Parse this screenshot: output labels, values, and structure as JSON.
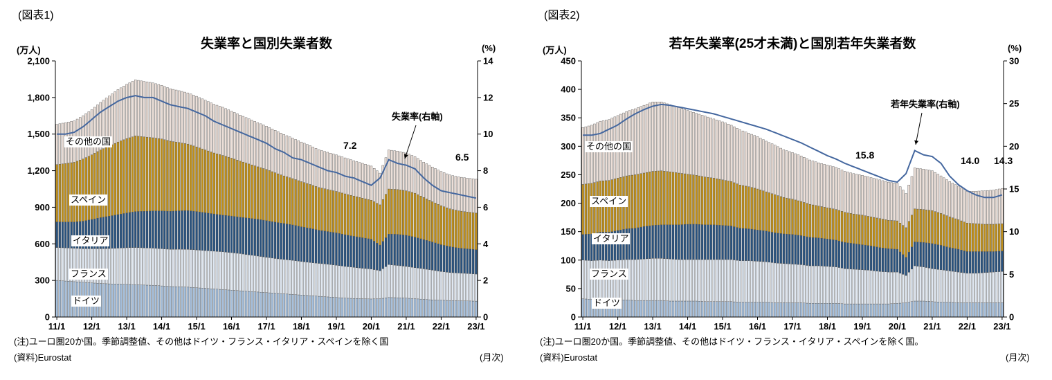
{
  "chart_data": [
    {
      "type": "bar",
      "subtype": "stacked-monthly-bars-with-line-overlay",
      "figure_label": "(図表1)",
      "title": "失業率と国別失業者数",
      "unit_left": "(万人)",
      "unit_right": "(%)",
      "x": {
        "start": "2011/1",
        "end": "2023/1",
        "step_months": 3,
        "note": "quarterly sample of monthly series"
      },
      "x_tick_labels": [
        "11/1",
        "12/1",
        "13/1",
        "14/1",
        "15/1",
        "16/1",
        "17/1",
        "18/1",
        "19/1",
        "20/1",
        "21/1",
        "22/1",
        "23/1"
      ],
      "ylim_left": [
        0,
        2100
      ],
      "yticks_left": [
        0,
        300,
        600,
        900,
        1200,
        1500,
        1800,
        2100
      ],
      "ylim_right": [
        0,
        14
      ],
      "yticks_right": [
        0,
        2,
        4,
        6,
        8,
        10,
        12,
        14
      ],
      "bar_outline_color": "#4d4d4d",
      "legend_position": "labels-in-plot",
      "series": [
        {
          "name": "ドイツ",
          "color": "#a6c0dd",
          "values": [
            300,
            295,
            290,
            285,
            280,
            275,
            272,
            270,
            268,
            265,
            262,
            260,
            255,
            250,
            248,
            245,
            240,
            235,
            230,
            225,
            220,
            215,
            210,
            205,
            200,
            195,
            190,
            185,
            180,
            175,
            170,
            165,
            160,
            155,
            152,
            150,
            148,
            150,
            160,
            158,
            155,
            150,
            145,
            140,
            138,
            135,
            133,
            132,
            130
          ]
        },
        {
          "name": "フランス",
          "color": "#e0e8f2",
          "values": [
            270,
            272,
            274,
            276,
            280,
            285,
            290,
            295,
            300,
            305,
            305,
            305,
            305,
            305,
            308,
            310,
            310,
            310,
            310,
            310,
            308,
            305,
            300,
            295,
            290,
            285,
            282,
            280,
            275,
            272,
            270,
            268,
            265,
            260,
            255,
            250,
            245,
            230,
            270,
            265,
            260,
            255,
            250,
            245,
            235,
            230,
            228,
            225,
            222
          ]
        },
        {
          "name": "イタリア",
          "color": "#29527e",
          "values": [
            210,
            212,
            215,
            225,
            240,
            255,
            265,
            275,
            285,
            295,
            300,
            305,
            310,
            312,
            315,
            318,
            315,
            310,
            305,
            300,
            300,
            298,
            300,
            302,
            300,
            298,
            295,
            290,
            285,
            280,
            272,
            268,
            265,
            260,
            255,
            250,
            245,
            210,
            250,
            255,
            255,
            250,
            240,
            230,
            220,
            212,
            205,
            202,
            200
          ]
        },
        {
          "name": "スペイン",
          "color": "#bf8f1a",
          "values": [
            470,
            480,
            490,
            510,
            530,
            555,
            575,
            595,
            610,
            620,
            610,
            600,
            590,
            575,
            560,
            545,
            530,
            515,
            500,
            490,
            475,
            460,
            445,
            430,
            420,
            405,
            390,
            380,
            370,
            360,
            350,
            345,
            340,
            335,
            330,
            325,
            320,
            330,
            370,
            368,
            365,
            360,
            345,
            330,
            320,
            310,
            305,
            302,
            300
          ]
        },
        {
          "name": "その他の国",
          "color": "#ecdfd8",
          "values": [
            330,
            335,
            340,
            355,
            370,
            390,
            410,
            430,
            445,
            460,
            455,
            450,
            440,
            430,
            425,
            420,
            415,
            408,
            400,
            395,
            385,
            378,
            370,
            362,
            355,
            348,
            340,
            332,
            325,
            318,
            310,
            305,
            300,
            295,
            290,
            285,
            280,
            260,
            320,
            315,
            310,
            300,
            290,
            285,
            280,
            278,
            278,
            278,
            278
          ]
        }
      ],
      "line": {
        "name": "失業率(右軸)",
        "axis": "right",
        "color": "#44679f",
        "values": [
          10.0,
          10.0,
          10.1,
          10.4,
          10.8,
          11.2,
          11.5,
          11.8,
          12.0,
          12.1,
          12.0,
          12.0,
          11.8,
          11.6,
          11.5,
          11.4,
          11.2,
          11.0,
          10.7,
          10.5,
          10.3,
          10.1,
          9.9,
          9.7,
          9.5,
          9.2,
          9.0,
          8.7,
          8.6,
          8.4,
          8.2,
          8.0,
          7.9,
          7.7,
          7.6,
          7.4,
          7.2,
          7.6,
          8.6,
          8.4,
          8.3,
          8.1,
          7.6,
          7.2,
          6.9,
          6.8,
          6.7,
          6.6,
          6.5
        ]
      },
      "callouts": [
        {
          "text": "7.2",
          "period": "20/1",
          "axis": "right"
        },
        {
          "text": "6.5",
          "period": "23/1",
          "axis": "right"
        }
      ],
      "note": "(注)ユーロ圏20か国。季節調整値、その他はドイツ・フランス・イタリア・スペインを除く国",
      "source": "(資料)Eurostat",
      "frequency": "(月次)"
    },
    {
      "type": "bar",
      "subtype": "stacked-monthly-bars-with-line-overlay",
      "figure_label": "(図表2)",
      "title": "若年失業率(25才未満)と国別若年失業者数",
      "unit_left": "(万人)",
      "unit_right": "(%)",
      "x": {
        "start": "2011/1",
        "end": "2023/1",
        "step_months": 3,
        "note": "quarterly sample of monthly series"
      },
      "x_tick_labels": [
        "11/1",
        "12/1",
        "13/1",
        "14/1",
        "15/1",
        "16/1",
        "17/1",
        "18/1",
        "19/1",
        "20/1",
        "21/1",
        "22/1",
        "23/1"
      ],
      "ylim_left": [
        0,
        450
      ],
      "yticks_left": [
        0,
        50,
        100,
        150,
        200,
        250,
        300,
        350,
        400,
        450
      ],
      "ylim_right": [
        0,
        30
      ],
      "yticks_right": [
        0,
        5,
        10,
        15,
        20,
        25,
        30
      ],
      "bar_outline_color": "#4d4d4d",
      "legend_position": "labels-in-plot",
      "series": [
        {
          "name": "ドイツ",
          "color": "#a6c0dd",
          "values": [
            32,
            31,
            31,
            30,
            30,
            30,
            29,
            29,
            29,
            29,
            28,
            28,
            28,
            28,
            27,
            27,
            27,
            27,
            26,
            26,
            26,
            26,
            25,
            25,
            25,
            25,
            24,
            24,
            24,
            24,
            23,
            23,
            23,
            23,
            23,
            23,
            24,
            25,
            28,
            28,
            27,
            26,
            26,
            25,
            25,
            25,
            25,
            25,
            25
          ]
        },
        {
          "name": "フランス",
          "color": "#e0e8f2",
          "values": [
            68,
            68,
            69,
            69,
            70,
            71,
            72,
            73,
            74,
            74,
            74,
            73,
            73,
            73,
            74,
            74,
            74,
            74,
            73,
            73,
            72,
            71,
            70,
            69,
            68,
            67,
            66,
            66,
            65,
            64,
            62,
            61,
            60,
            59,
            57,
            56,
            55,
            48,
            62,
            60,
            58,
            57,
            55,
            54,
            52,
            52,
            53,
            54,
            55
          ]
        },
        {
          "name": "イタリア",
          "color": "#29527e",
          "values": [
            45,
            47,
            49,
            50,
            52,
            54,
            55,
            57,
            58,
            59,
            60,
            61,
            62,
            62,
            61,
            61,
            60,
            59,
            57,
            56,
            55,
            54,
            53,
            52,
            52,
            51,
            50,
            49,
            48,
            47,
            46,
            45,
            44,
            43,
            42,
            41,
            40,
            32,
            42,
            43,
            44,
            43,
            41,
            40,
            38,
            38,
            37,
            36,
            36
          ]
        },
        {
          "name": "スペイン",
          "color": "#bf8f1a",
          "values": [
            88,
            89,
            90,
            91,
            92,
            93,
            94,
            94,
            95,
            95,
            93,
            91,
            88,
            86,
            84,
            82,
            80,
            78,
            76,
            74,
            72,
            69,
            67,
            64,
            62,
            60,
            58,
            56,
            55,
            54,
            53,
            52,
            52,
            51,
            51,
            50,
            50,
            52,
            58,
            58,
            58,
            56,
            54,
            52,
            50,
            49,
            48,
            48,
            48
          ]
        },
        {
          "name": "その他の国",
          "color": "#ecdfd8",
          "values": [
            100,
            102,
            105,
            107,
            110,
            113,
            116,
            119,
            122,
            121,
            118,
            115,
            112,
            109,
            107,
            104,
            102,
            99,
            97,
            94,
            92,
            89,
            87,
            84,
            82,
            80,
            78,
            76,
            75,
            74,
            72,
            71,
            70,
            69,
            68,
            67,
            66,
            60,
            72,
            71,
            70,
            66,
            62,
            59,
            56,
            57,
            59,
            60,
            62
          ]
        }
      ],
      "line": {
        "name": "若年失業率(右軸)",
        "axis": "right",
        "color": "#44679f",
        "values": [
          21.3,
          21.3,
          21.5,
          22.0,
          22.5,
          23.2,
          23.8,
          24.3,
          24.7,
          24.9,
          24.8,
          24.6,
          24.4,
          24.2,
          24.0,
          23.8,
          23.5,
          23.2,
          22.9,
          22.6,
          22.3,
          22.0,
          21.6,
          21.2,
          20.8,
          20.4,
          19.9,
          19.4,
          18.9,
          18.5,
          18.0,
          17.6,
          17.2,
          16.8,
          16.4,
          16.0,
          15.8,
          16.8,
          19.5,
          19.0,
          18.8,
          18.0,
          16.5,
          15.5,
          14.8,
          14.3,
          14.0,
          14.0,
          14.3
        ]
      },
      "callouts": [
        {
          "text": "15.8",
          "period": "20/1",
          "axis": "right"
        },
        {
          "text": "14.0",
          "period": "22/7",
          "axis": "right"
        },
        {
          "text": "14.3",
          "period": "23/1",
          "axis": "right"
        }
      ],
      "note": "(注)ユーロ圏20か国。季節調整値、その他はドイツ・フランス・イタリア・スペインを除く国。",
      "source": "(資料)Eurostat",
      "frequency": "(月次)"
    }
  ]
}
